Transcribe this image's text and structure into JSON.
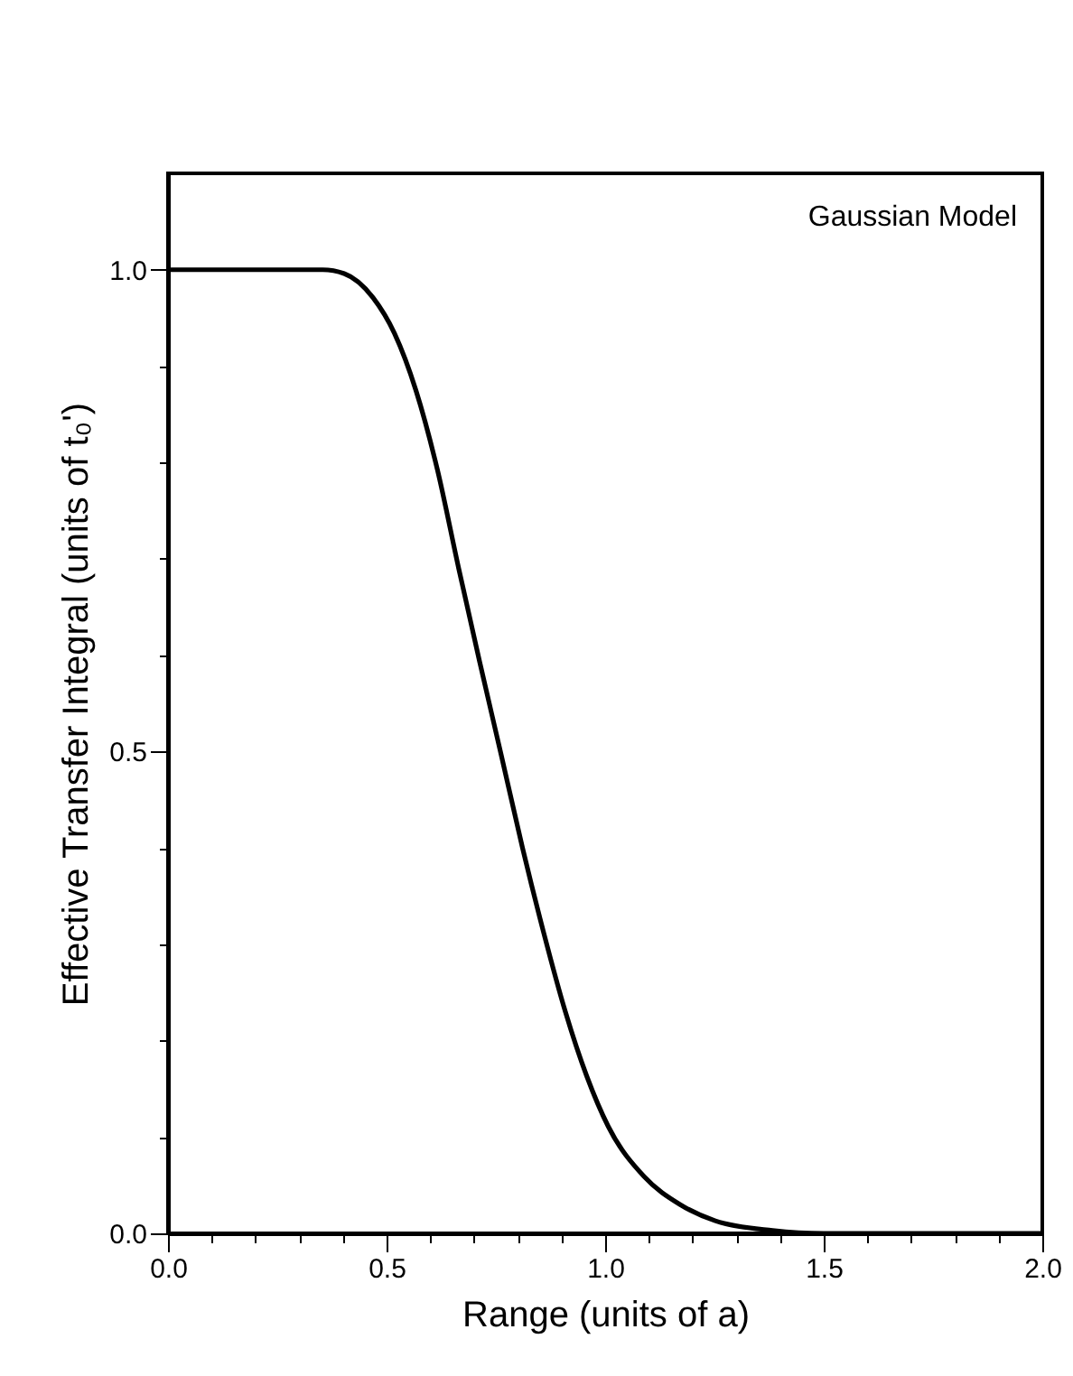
{
  "chart_data": {
    "type": "line",
    "xlabel": "Range (units of a)",
    "ylabel": "Effective Transfer Integral (units of t₀')",
    "annotations": [
      "Gaussian Model"
    ],
    "x": [
      0,
      0.354,
      0.403,
      0.469,
      0.518,
      0.567,
      0.616,
      0.665,
      0.713,
      0.762,
      0.811,
      0.86,
      0.909,
      0.958,
      1.007,
      1.089,
      1.171,
      1.252,
      1.383,
      1.5,
      2.0
    ],
    "series": [
      {
        "color": "#000000",
        "values": [
          1,
          1,
          0.996,
          0.971,
          0.934,
          0.875,
          0.793,
          0.69,
          0.593,
          0.497,
          0.4,
          0.311,
          0.23,
          0.163,
          0.111,
          0.059,
          0.03,
          0.013,
          0.003,
          0,
          0
        ]
      }
    ],
    "xlim": [
      0,
      2
    ],
    "ylim": [
      0,
      1.1
    ],
    "xticks": [
      {
        "value": 0,
        "label": "0.0"
      },
      {
        "value": 0.1,
        "label": null
      },
      {
        "value": 0.2,
        "label": null
      },
      {
        "value": 0.3,
        "label": null
      },
      {
        "value": 0.4,
        "label": null
      },
      {
        "value": 0.5,
        "label": "0.5"
      },
      {
        "value": 0.6,
        "label": null
      },
      {
        "value": 0.7,
        "label": null
      },
      {
        "value": 0.8,
        "label": null
      },
      {
        "value": 0.9,
        "label": null
      },
      {
        "value": 1,
        "label": "1.0"
      },
      {
        "value": 1.1,
        "label": null
      },
      {
        "value": 1.2,
        "label": null
      },
      {
        "value": 1.3,
        "label": null
      },
      {
        "value": 1.4,
        "label": null
      },
      {
        "value": 1.5,
        "label": "1.5"
      },
      {
        "value": 1.6,
        "label": null
      },
      {
        "value": 1.7,
        "label": null
      },
      {
        "value": 1.8,
        "label": null
      },
      {
        "value": 1.9,
        "label": null
      },
      {
        "value": 2,
        "label": "2.0"
      }
    ],
    "yticks": [
      {
        "value": 0,
        "label": "0.0"
      },
      {
        "value": 0.1,
        "label": null
      },
      {
        "value": 0.2,
        "label": null
      },
      {
        "value": 0.3,
        "label": null
      },
      {
        "value": 0.4,
        "label": null
      },
      {
        "value": 0.5,
        "label": "0.5"
      },
      {
        "value": 0.6,
        "label": null
      },
      {
        "value": 0.7,
        "label": null
      },
      {
        "value": 0.8,
        "label": null
      },
      {
        "value": 0.9,
        "label": null
      },
      {
        "value": 1,
        "label": "1.0"
      }
    ],
    "grid": false,
    "marker": "none",
    "line_style": "solid"
  }
}
